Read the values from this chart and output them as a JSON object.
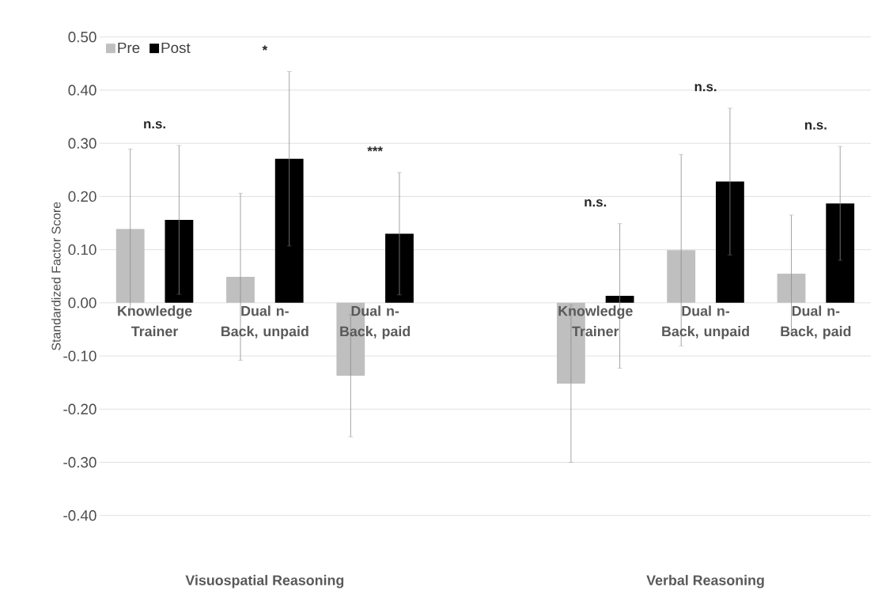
{
  "chart_data": {
    "type": "bar",
    "ylabel": "Standardized Factor Score",
    "categories": [
      "Knowledge Trainer",
      "Dual n-Back, unpaid",
      "Dual n-Back, paid",
      null,
      "Knowledge Trainer",
      "Dual n-Back, unpaid",
      "Dual n-Back, paid"
    ],
    "series": [
      {
        "name": "Pre",
        "color": "#bfbfbf",
        "values": [
          0.139,
          0.049,
          -0.137,
          null,
          -0.152,
          0.099,
          0.055
        ],
        "errors": [
          0.15,
          0.157,
          0.115,
          null,
          0.148,
          0.18,
          0.11
        ]
      },
      {
        "name": "Post",
        "color": "#000000",
        "values": [
          0.156,
          0.271,
          0.13,
          null,
          0.013,
          0.228,
          0.187
        ],
        "errors": [
          0.14,
          0.164,
          0.115,
          null,
          0.136,
          0.138,
          0.107
        ]
      }
    ],
    "ylim": [
      -0.4,
      0.5
    ],
    "yticks": [
      {
        "value": -0.4,
        "label": "-0.40"
      },
      {
        "value": -0.3,
        "label": "-0.30"
      },
      {
        "value": -0.2,
        "label": "-0.20"
      },
      {
        "value": -0.1,
        "label": "-0.10"
      },
      {
        "value": 0,
        "label": "0.00"
      },
      {
        "value": 0.1,
        "label": "0.10"
      },
      {
        "value": 0.2,
        "label": "0.20"
      },
      {
        "value": 0.3,
        "label": "0.30"
      },
      {
        "value": 0.4,
        "label": "0.40"
      },
      {
        "value": 0.5,
        "label": "0.50"
      }
    ],
    "grid": "y",
    "legend": "top left",
    "annotations": [
      "n.s.",
      "*",
      "***",
      "n.s.",
      "n.s.",
      "n.s.",
      "Visuospatial Reasoning",
      "Verbal Reasoning"
    ]
  }
}
